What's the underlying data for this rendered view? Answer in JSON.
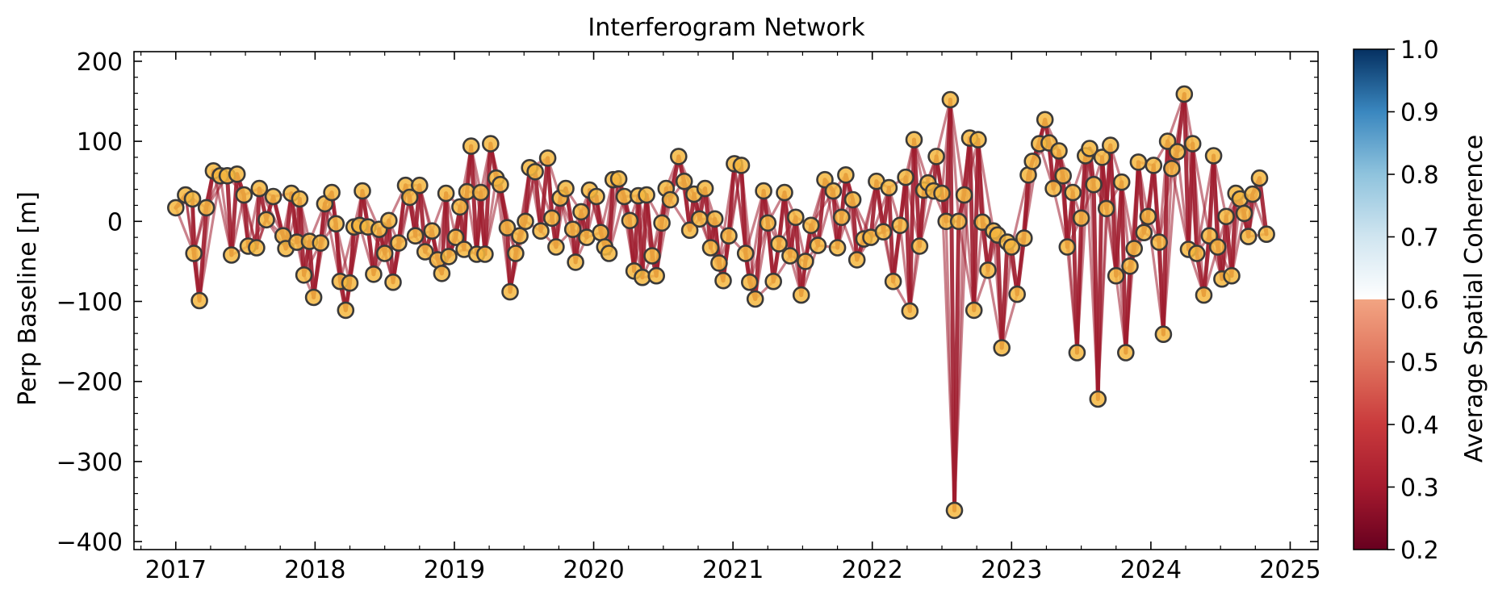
{
  "chart_data": {
    "type": "scatter",
    "title": "Interferogram Network",
    "xlabel": "",
    "ylabel": "Perp Baseline [m]",
    "xlim": [
      2016.7,
      2025.2
    ],
    "ylim": [
      -410,
      212
    ],
    "x_ticks": [
      2017,
      2018,
      2019,
      2020,
      2021,
      2022,
      2023,
      2024,
      2025
    ],
    "y_ticks": [
      200,
      100,
      0,
      -100,
      -200,
      -300,
      -400
    ],
    "y_tick_labels": [
      "200",
      "100",
      "0",
      "−100",
      "−200",
      "−300",
      "−400"
    ],
    "grid": false,
    "legend": "none",
    "colorbar": {
      "label": "Average Spatial Coherence",
      "range": [
        0.2,
        1.0
      ],
      "ticks": [
        "0.2",
        "0.3",
        "0.4",
        "0.5",
        "0.6",
        "0.7",
        "0.8",
        "0.9",
        "1.0"
      ],
      "colormap": "RdBu",
      "clipped_below_white": 0.7
    },
    "colors": {
      "edge": "#9f1c2e",
      "node_fill": "#f5b73f",
      "node_stroke": "#3a3a3a"
    },
    "edge_coherence": 0.32,
    "acquisitions": [
      {
        "date": 2017.0,
        "bperp": 17
      },
      {
        "date": 2017.07,
        "bperp": 33
      },
      {
        "date": 2017.12,
        "bperp": 28
      },
      {
        "date": 2017.13,
        "bperp": -40
      },
      {
        "date": 2017.17,
        "bperp": -99
      },
      {
        "date": 2017.22,
        "bperp": 17
      },
      {
        "date": 2017.27,
        "bperp": 63
      },
      {
        "date": 2017.32,
        "bperp": 57
      },
      {
        "date": 2017.37,
        "bperp": 57
      },
      {
        "date": 2017.4,
        "bperp": -42
      },
      {
        "date": 2017.44,
        "bperp": 59
      },
      {
        "date": 2017.49,
        "bperp": 33
      },
      {
        "date": 2017.52,
        "bperp": -31
      },
      {
        "date": 2017.58,
        "bperp": -33
      },
      {
        "date": 2017.6,
        "bperp": 41
      },
      {
        "date": 2017.65,
        "bperp": 2
      },
      {
        "date": 2017.7,
        "bperp": 31
      },
      {
        "date": 2017.77,
        "bperp": -18
      },
      {
        "date": 2017.79,
        "bperp": -34
      },
      {
        "date": 2017.83,
        "bperp": 35
      },
      {
        "date": 2017.87,
        "bperp": -26
      },
      {
        "date": 2017.89,
        "bperp": 28
      },
      {
        "date": 2017.92,
        "bperp": -67
      },
      {
        "date": 2017.96,
        "bperp": -25
      },
      {
        "date": 2017.99,
        "bperp": -95
      },
      {
        "date": 2018.04,
        "bperp": -27
      },
      {
        "date": 2018.07,
        "bperp": 22
      },
      {
        "date": 2018.12,
        "bperp": 36
      },
      {
        "date": 2018.15,
        "bperp": -3
      },
      {
        "date": 2018.18,
        "bperp": -75
      },
      {
        "date": 2018.22,
        "bperp": -111
      },
      {
        "date": 2018.25,
        "bperp": -77
      },
      {
        "date": 2018.28,
        "bperp": -7
      },
      {
        "date": 2018.32,
        "bperp": -5
      },
      {
        "date": 2018.34,
        "bperp": 38
      },
      {
        "date": 2018.38,
        "bperp": -7
      },
      {
        "date": 2018.42,
        "bperp": -66
      },
      {
        "date": 2018.46,
        "bperp": -10
      },
      {
        "date": 2018.5,
        "bperp": -40
      },
      {
        "date": 2018.53,
        "bperp": 1
      },
      {
        "date": 2018.56,
        "bperp": -76
      },
      {
        "date": 2018.6,
        "bperp": -27
      },
      {
        "date": 2018.65,
        "bperp": 45
      },
      {
        "date": 2018.68,
        "bperp": 30
      },
      {
        "date": 2018.72,
        "bperp": -18
      },
      {
        "date": 2018.75,
        "bperp": 45
      },
      {
        "date": 2018.79,
        "bperp": -38
      },
      {
        "date": 2018.84,
        "bperp": -12
      },
      {
        "date": 2018.88,
        "bperp": -48
      },
      {
        "date": 2018.91,
        "bperp": -65
      },
      {
        "date": 2018.94,
        "bperp": 35
      },
      {
        "date": 2018.96,
        "bperp": -44
      },
      {
        "date": 2019.01,
        "bperp": -20
      },
      {
        "date": 2019.04,
        "bperp": 18
      },
      {
        "date": 2019.07,
        "bperp": -35
      },
      {
        "date": 2019.09,
        "bperp": 37
      },
      {
        "date": 2019.12,
        "bperp": 94
      },
      {
        "date": 2019.16,
        "bperp": -41
      },
      {
        "date": 2019.19,
        "bperp": 36
      },
      {
        "date": 2019.22,
        "bperp": -41
      },
      {
        "date": 2019.26,
        "bperp": 97
      },
      {
        "date": 2019.3,
        "bperp": 54
      },
      {
        "date": 2019.33,
        "bperp": 46
      },
      {
        "date": 2019.38,
        "bperp": -8
      },
      {
        "date": 2019.4,
        "bperp": -88
      },
      {
        "date": 2019.44,
        "bperp": -40
      },
      {
        "date": 2019.47,
        "bperp": -18
      },
      {
        "date": 2019.51,
        "bperp": 0
      },
      {
        "date": 2019.54,
        "bperp": 67
      },
      {
        "date": 2019.58,
        "bperp": 62
      },
      {
        "date": 2019.62,
        "bperp": -12
      },
      {
        "date": 2019.67,
        "bperp": 79
      },
      {
        "date": 2019.7,
        "bperp": 4
      },
      {
        "date": 2019.73,
        "bperp": -32
      },
      {
        "date": 2019.76,
        "bperp": 29
      },
      {
        "date": 2019.8,
        "bperp": 41
      },
      {
        "date": 2019.85,
        "bperp": -10
      },
      {
        "date": 2019.87,
        "bperp": -51
      },
      {
        "date": 2019.91,
        "bperp": 12
      },
      {
        "date": 2019.95,
        "bperp": -20
      },
      {
        "date": 2019.97,
        "bperp": 39
      },
      {
        "date": 2020.02,
        "bperp": 31
      },
      {
        "date": 2020.05,
        "bperp": -14
      },
      {
        "date": 2020.08,
        "bperp": -32
      },
      {
        "date": 2020.11,
        "bperp": -40
      },
      {
        "date": 2020.14,
        "bperp": 52
      },
      {
        "date": 2020.18,
        "bperp": 53
      },
      {
        "date": 2020.22,
        "bperp": 31
      },
      {
        "date": 2020.26,
        "bperp": 1
      },
      {
        "date": 2020.29,
        "bperp": -62
      },
      {
        "date": 2020.32,
        "bperp": 32
      },
      {
        "date": 2020.35,
        "bperp": -70
      },
      {
        "date": 2020.38,
        "bperp": 33
      },
      {
        "date": 2020.42,
        "bperp": -43
      },
      {
        "date": 2020.45,
        "bperp": -68
      },
      {
        "date": 2020.49,
        "bperp": -2
      },
      {
        "date": 2020.52,
        "bperp": 41
      },
      {
        "date": 2020.55,
        "bperp": 27
      },
      {
        "date": 2020.61,
        "bperp": 81
      },
      {
        "date": 2020.65,
        "bperp": 50
      },
      {
        "date": 2020.69,
        "bperp": -11
      },
      {
        "date": 2020.72,
        "bperp": 34
      },
      {
        "date": 2020.76,
        "bperp": 3
      },
      {
        "date": 2020.8,
        "bperp": 41
      },
      {
        "date": 2020.84,
        "bperp": -33
      },
      {
        "date": 2020.87,
        "bperp": 3
      },
      {
        "date": 2020.9,
        "bperp": -52
      },
      {
        "date": 2020.93,
        "bperp": -74
      },
      {
        "date": 2020.97,
        "bperp": -18
      },
      {
        "date": 2021.01,
        "bperp": 72
      },
      {
        "date": 2021.06,
        "bperp": 70
      },
      {
        "date": 2021.09,
        "bperp": -40
      },
      {
        "date": 2021.12,
        "bperp": -76
      },
      {
        "date": 2021.16,
        "bperp": -97
      },
      {
        "date": 2021.22,
        "bperp": 38
      },
      {
        "date": 2021.25,
        "bperp": -2
      },
      {
        "date": 2021.29,
        "bperp": -75
      },
      {
        "date": 2021.33,
        "bperp": -28
      },
      {
        "date": 2021.37,
        "bperp": 36
      },
      {
        "date": 2021.41,
        "bperp": -43
      },
      {
        "date": 2021.45,
        "bperp": 5
      },
      {
        "date": 2021.49,
        "bperp": -92
      },
      {
        "date": 2021.52,
        "bperp": -50
      },
      {
        "date": 2021.56,
        "bperp": -5
      },
      {
        "date": 2021.61,
        "bperp": -30
      },
      {
        "date": 2021.66,
        "bperp": 52
      },
      {
        "date": 2021.72,
        "bperp": 38
      },
      {
        "date": 2021.75,
        "bperp": -33
      },
      {
        "date": 2021.78,
        "bperp": 5
      },
      {
        "date": 2021.81,
        "bperp": 58
      },
      {
        "date": 2021.86,
        "bperp": 27
      },
      {
        "date": 2021.89,
        "bperp": -48
      },
      {
        "date": 2021.94,
        "bperp": -22
      },
      {
        "date": 2021.99,
        "bperp": -20
      },
      {
        "date": 2022.03,
        "bperp": 50
      },
      {
        "date": 2022.08,
        "bperp": -13
      },
      {
        "date": 2022.12,
        "bperp": 42
      },
      {
        "date": 2022.15,
        "bperp": -75
      },
      {
        "date": 2022.2,
        "bperp": -5
      },
      {
        "date": 2022.24,
        "bperp": 55
      },
      {
        "date": 2022.27,
        "bperp": -112
      },
      {
        "date": 2022.3,
        "bperp": 102
      },
      {
        "date": 2022.34,
        "bperp": -31
      },
      {
        "date": 2022.37,
        "bperp": 39
      },
      {
        "date": 2022.4,
        "bperp": 48
      },
      {
        "date": 2022.44,
        "bperp": 38
      },
      {
        "date": 2022.46,
        "bperp": 81
      },
      {
        "date": 2022.5,
        "bperp": 35
      },
      {
        "date": 2022.53,
        "bperp": 0
      },
      {
        "date": 2022.56,
        "bperp": 152
      },
      {
        "date": 2022.59,
        "bperp": -361
      },
      {
        "date": 2022.62,
        "bperp": 0
      },
      {
        "date": 2022.66,
        "bperp": 33
      },
      {
        "date": 2022.7,
        "bperp": 104
      },
      {
        "date": 2022.73,
        "bperp": -111
      },
      {
        "date": 2022.76,
        "bperp": 102
      },
      {
        "date": 2022.79,
        "bperp": -1
      },
      {
        "date": 2022.83,
        "bperp": -61
      },
      {
        "date": 2022.87,
        "bperp": -12
      },
      {
        "date": 2022.9,
        "bperp": -17
      },
      {
        "date": 2022.93,
        "bperp": -158
      },
      {
        "date": 2022.97,
        "bperp": -26
      },
      {
        "date": 2023.0,
        "bperp": -32
      },
      {
        "date": 2023.04,
        "bperp": -91
      },
      {
        "date": 2023.09,
        "bperp": -21
      },
      {
        "date": 2023.12,
        "bperp": 58
      },
      {
        "date": 2023.15,
        "bperp": 75
      },
      {
        "date": 2023.2,
        "bperp": 97
      },
      {
        "date": 2023.24,
        "bperp": 127
      },
      {
        "date": 2023.27,
        "bperp": 98
      },
      {
        "date": 2023.3,
        "bperp": 41
      },
      {
        "date": 2023.34,
        "bperp": 88
      },
      {
        "date": 2023.37,
        "bperp": 57
      },
      {
        "date": 2023.4,
        "bperp": -32
      },
      {
        "date": 2023.44,
        "bperp": 36
      },
      {
        "date": 2023.47,
        "bperp": -164
      },
      {
        "date": 2023.5,
        "bperp": 4
      },
      {
        "date": 2023.53,
        "bperp": 82
      },
      {
        "date": 2023.56,
        "bperp": 91
      },
      {
        "date": 2023.59,
        "bperp": 46
      },
      {
        "date": 2023.62,
        "bperp": -222
      },
      {
        "date": 2023.65,
        "bperp": 80
      },
      {
        "date": 2023.68,
        "bperp": 16
      },
      {
        "date": 2023.71,
        "bperp": 95
      },
      {
        "date": 2023.75,
        "bperp": -68
      },
      {
        "date": 2023.79,
        "bperp": 49
      },
      {
        "date": 2023.82,
        "bperp": -164
      },
      {
        "date": 2023.85,
        "bperp": -56
      },
      {
        "date": 2023.88,
        "bperp": -34
      },
      {
        "date": 2023.91,
        "bperp": 74
      },
      {
        "date": 2023.95,
        "bperp": -14
      },
      {
        "date": 2023.98,
        "bperp": 6
      },
      {
        "date": 2024.02,
        "bperp": 70
      },
      {
        "date": 2024.06,
        "bperp": -26
      },
      {
        "date": 2024.09,
        "bperp": -141
      },
      {
        "date": 2024.12,
        "bperp": 100
      },
      {
        "date": 2024.15,
        "bperp": 66
      },
      {
        "date": 2024.19,
        "bperp": 87
      },
      {
        "date": 2024.24,
        "bperp": 159
      },
      {
        "date": 2024.27,
        "bperp": -35
      },
      {
        "date": 2024.3,
        "bperp": 97
      },
      {
        "date": 2024.33,
        "bperp": -40
      },
      {
        "date": 2024.38,
        "bperp": -92
      },
      {
        "date": 2024.42,
        "bperp": -18
      },
      {
        "date": 2024.45,
        "bperp": 82
      },
      {
        "date": 2024.48,
        "bperp": -32
      },
      {
        "date": 2024.51,
        "bperp": -72
      },
      {
        "date": 2024.54,
        "bperp": 6
      },
      {
        "date": 2024.58,
        "bperp": -68
      },
      {
        "date": 2024.61,
        "bperp": 35
      },
      {
        "date": 2024.64,
        "bperp": 28
      },
      {
        "date": 2024.67,
        "bperp": 10
      },
      {
        "date": 2024.7,
        "bperp": -19
      },
      {
        "date": 2024.73,
        "bperp": 34
      },
      {
        "date": 2024.78,
        "bperp": 54
      },
      {
        "date": 2024.83,
        "bperp": -16
      }
    ]
  }
}
